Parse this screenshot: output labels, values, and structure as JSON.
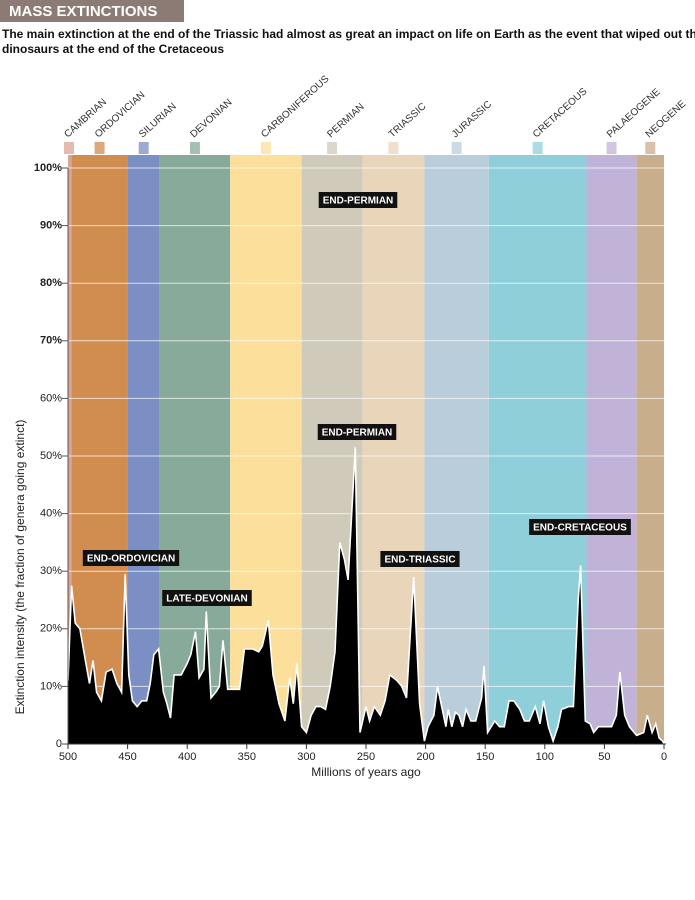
{
  "chart_data": {
    "type": "area",
    "title": "MASS EXTINCTIONS",
    "subtitle": [
      "The main extinction at the end of the Triassic had almost as great an impact on life on Earth as the event that wiped out the",
      "dinosaurs at the end of the Cretaceous"
    ],
    "x_label": "Millions of years ago",
    "y_label": "Extinction intensity (the fraction of genera going extinct)",
    "xlim": [
      500,
      0
    ],
    "xticks": [
      500,
      450,
      400,
      350,
      300,
      250,
      200,
      150,
      100,
      50,
      0
    ],
    "ylim": [
      0,
      100
    ],
    "yticks": [
      0,
      {
        "value": 10,
        "label": "10%"
      },
      {
        "value": 20,
        "label": "20%"
      },
      {
        "value": 30,
        "label": "30%"
      },
      {
        "value": 40,
        "label": "40%"
      },
      {
        "value": 50,
        "label": "50%"
      },
      {
        "value": 60,
        "label": "60%"
      },
      {
        "value": 70,
        "label": "70%"
      },
      {
        "value": 80,
        "label": "80%"
      },
      {
        "value": 90,
        "label": "90%"
      },
      {
        "value": 100,
        "label": "100%"
      }
    ],
    "grid": true,
    "periods": [
      {
        "name": "CAMBRIAN",
        "start": 500,
        "end": 497,
        "color": "#d9a497"
      },
      {
        "name": "ORDOVICIAN",
        "start": 497,
        "end": 450,
        "color": "#d18c50"
      },
      {
        "name": "SILURIAN",
        "start": 450,
        "end": 423,
        "color": "#7b8fc4"
      },
      {
        "name": "DEVONIAN",
        "start": 423,
        "end": 364,
        "color": "#88aa9a"
      },
      {
        "name": "CARBONIFEROUS",
        "start": 364,
        "end": 304,
        "color": "#fbdf9b"
      },
      {
        "name": "PERMIAN",
        "start": 304,
        "end": 253,
        "color": "#cfcab9"
      },
      {
        "name": "TRIASSIC",
        "start": 253,
        "end": 201,
        "color": "#e9d5ba"
      },
      {
        "name": "JURASSIC",
        "start": 201,
        "end": 147,
        "color": "#b9cdda"
      },
      {
        "name": "CRETACEOUS",
        "start": 147,
        "end": 65,
        "color": "#8fcfd9"
      },
      {
        "name": "PALAEOGENE",
        "start": 65,
        "end": 23,
        "color": "#c1b3d8"
      },
      {
        "name": "NEOGENE",
        "start": 23,
        "end": 0,
        "color": "#c9ae8c"
      }
    ],
    "series": [
      {
        "name": "Extinction intensity",
        "color": "#000000",
        "x": [
          500,
          497,
          494,
          490,
          485,
          482,
          479,
          476,
          472,
          468,
          463,
          459,
          455,
          452,
          449,
          446,
          442,
          438,
          434,
          431,
          428,
          424,
          420,
          417,
          414,
          411,
          405,
          400,
          397,
          393,
          390,
          386,
          384,
          380,
          376,
          373,
          370,
          366,
          360,
          356,
          352,
          345,
          340,
          337,
          332,
          328,
          323,
          318,
          314,
          311,
          308,
          304,
          300,
          296,
          292,
          288,
          284,
          280,
          276,
          272,
          268,
          265,
          259,
          255,
          250,
          247,
          243,
          238,
          234,
          230,
          224,
          220,
          216,
          210,
          205,
          201,
          198,
          193,
          190,
          186,
          183,
          181,
          178,
          175,
          172,
          169,
          166,
          162,
          158,
          153,
          151,
          148,
          142,
          138,
          134,
          130,
          126,
          121,
          117,
          113,
          110,
          108,
          104,
          101,
          97,
          93,
          89,
          86,
          80,
          76,
          72,
          70,
          66,
          62,
          59,
          55,
          48,
          44,
          40,
          37,
          33,
          29,
          23,
          17,
          14,
          10,
          7,
          4,
          1,
          0
        ],
        "values": [
          11,
          27.5,
          21,
          20,
          14,
          10.5,
          14.5,
          9,
          7.5,
          12.5,
          13,
          10.5,
          9,
          29.5,
          12,
          7.5,
          6.5,
          7.5,
          7.5,
          10.5,
          15.5,
          16.5,
          9,
          7,
          4.5,
          12,
          12,
          14,
          15.5,
          19.5,
          11.5,
          13,
          23,
          8,
          9,
          10,
          18,
          9.5,
          9.5,
          9.5,
          16.5,
          16.5,
          16,
          17,
          21.5,
          12,
          7,
          4,
          11.5,
          7,
          14,
          3,
          2,
          5,
          6.5,
          6.5,
          6,
          10,
          16,
          35,
          32,
          28.5,
          51.5,
          2,
          6.5,
          4,
          6.5,
          5,
          7.5,
          12,
          11,
          10,
          8,
          29,
          7,
          0.5,
          3,
          5,
          10,
          6,
          3,
          6,
          3,
          5.5,
          5,
          3,
          6,
          4,
          4,
          8,
          13.5,
          2,
          4,
          3,
          3,
          7.5,
          7.5,
          6,
          4,
          4,
          5.5,
          6.5,
          3.5,
          7.5,
          3,
          0.5,
          3,
          6,
          6.5,
          6.5,
          25,
          31,
          4,
          3.5,
          2,
          3,
          3,
          3,
          5,
          12.5,
          5,
          3,
          1.5,
          2,
          5,
          2,
          3.5,
          1,
          0.5,
          0
        ]
      }
    ],
    "annotations": [
      {
        "text": "END-ORDOVICIAN"
      },
      {
        "text": "LATE-DEVONIAN"
      },
      {
        "text": "END-PERMIAN"
      },
      {
        "text": "END-PERMIAN"
      },
      {
        "text": "END-TRIASSIC"
      },
      {
        "text": "END-CRETACEOUS"
      }
    ]
  }
}
